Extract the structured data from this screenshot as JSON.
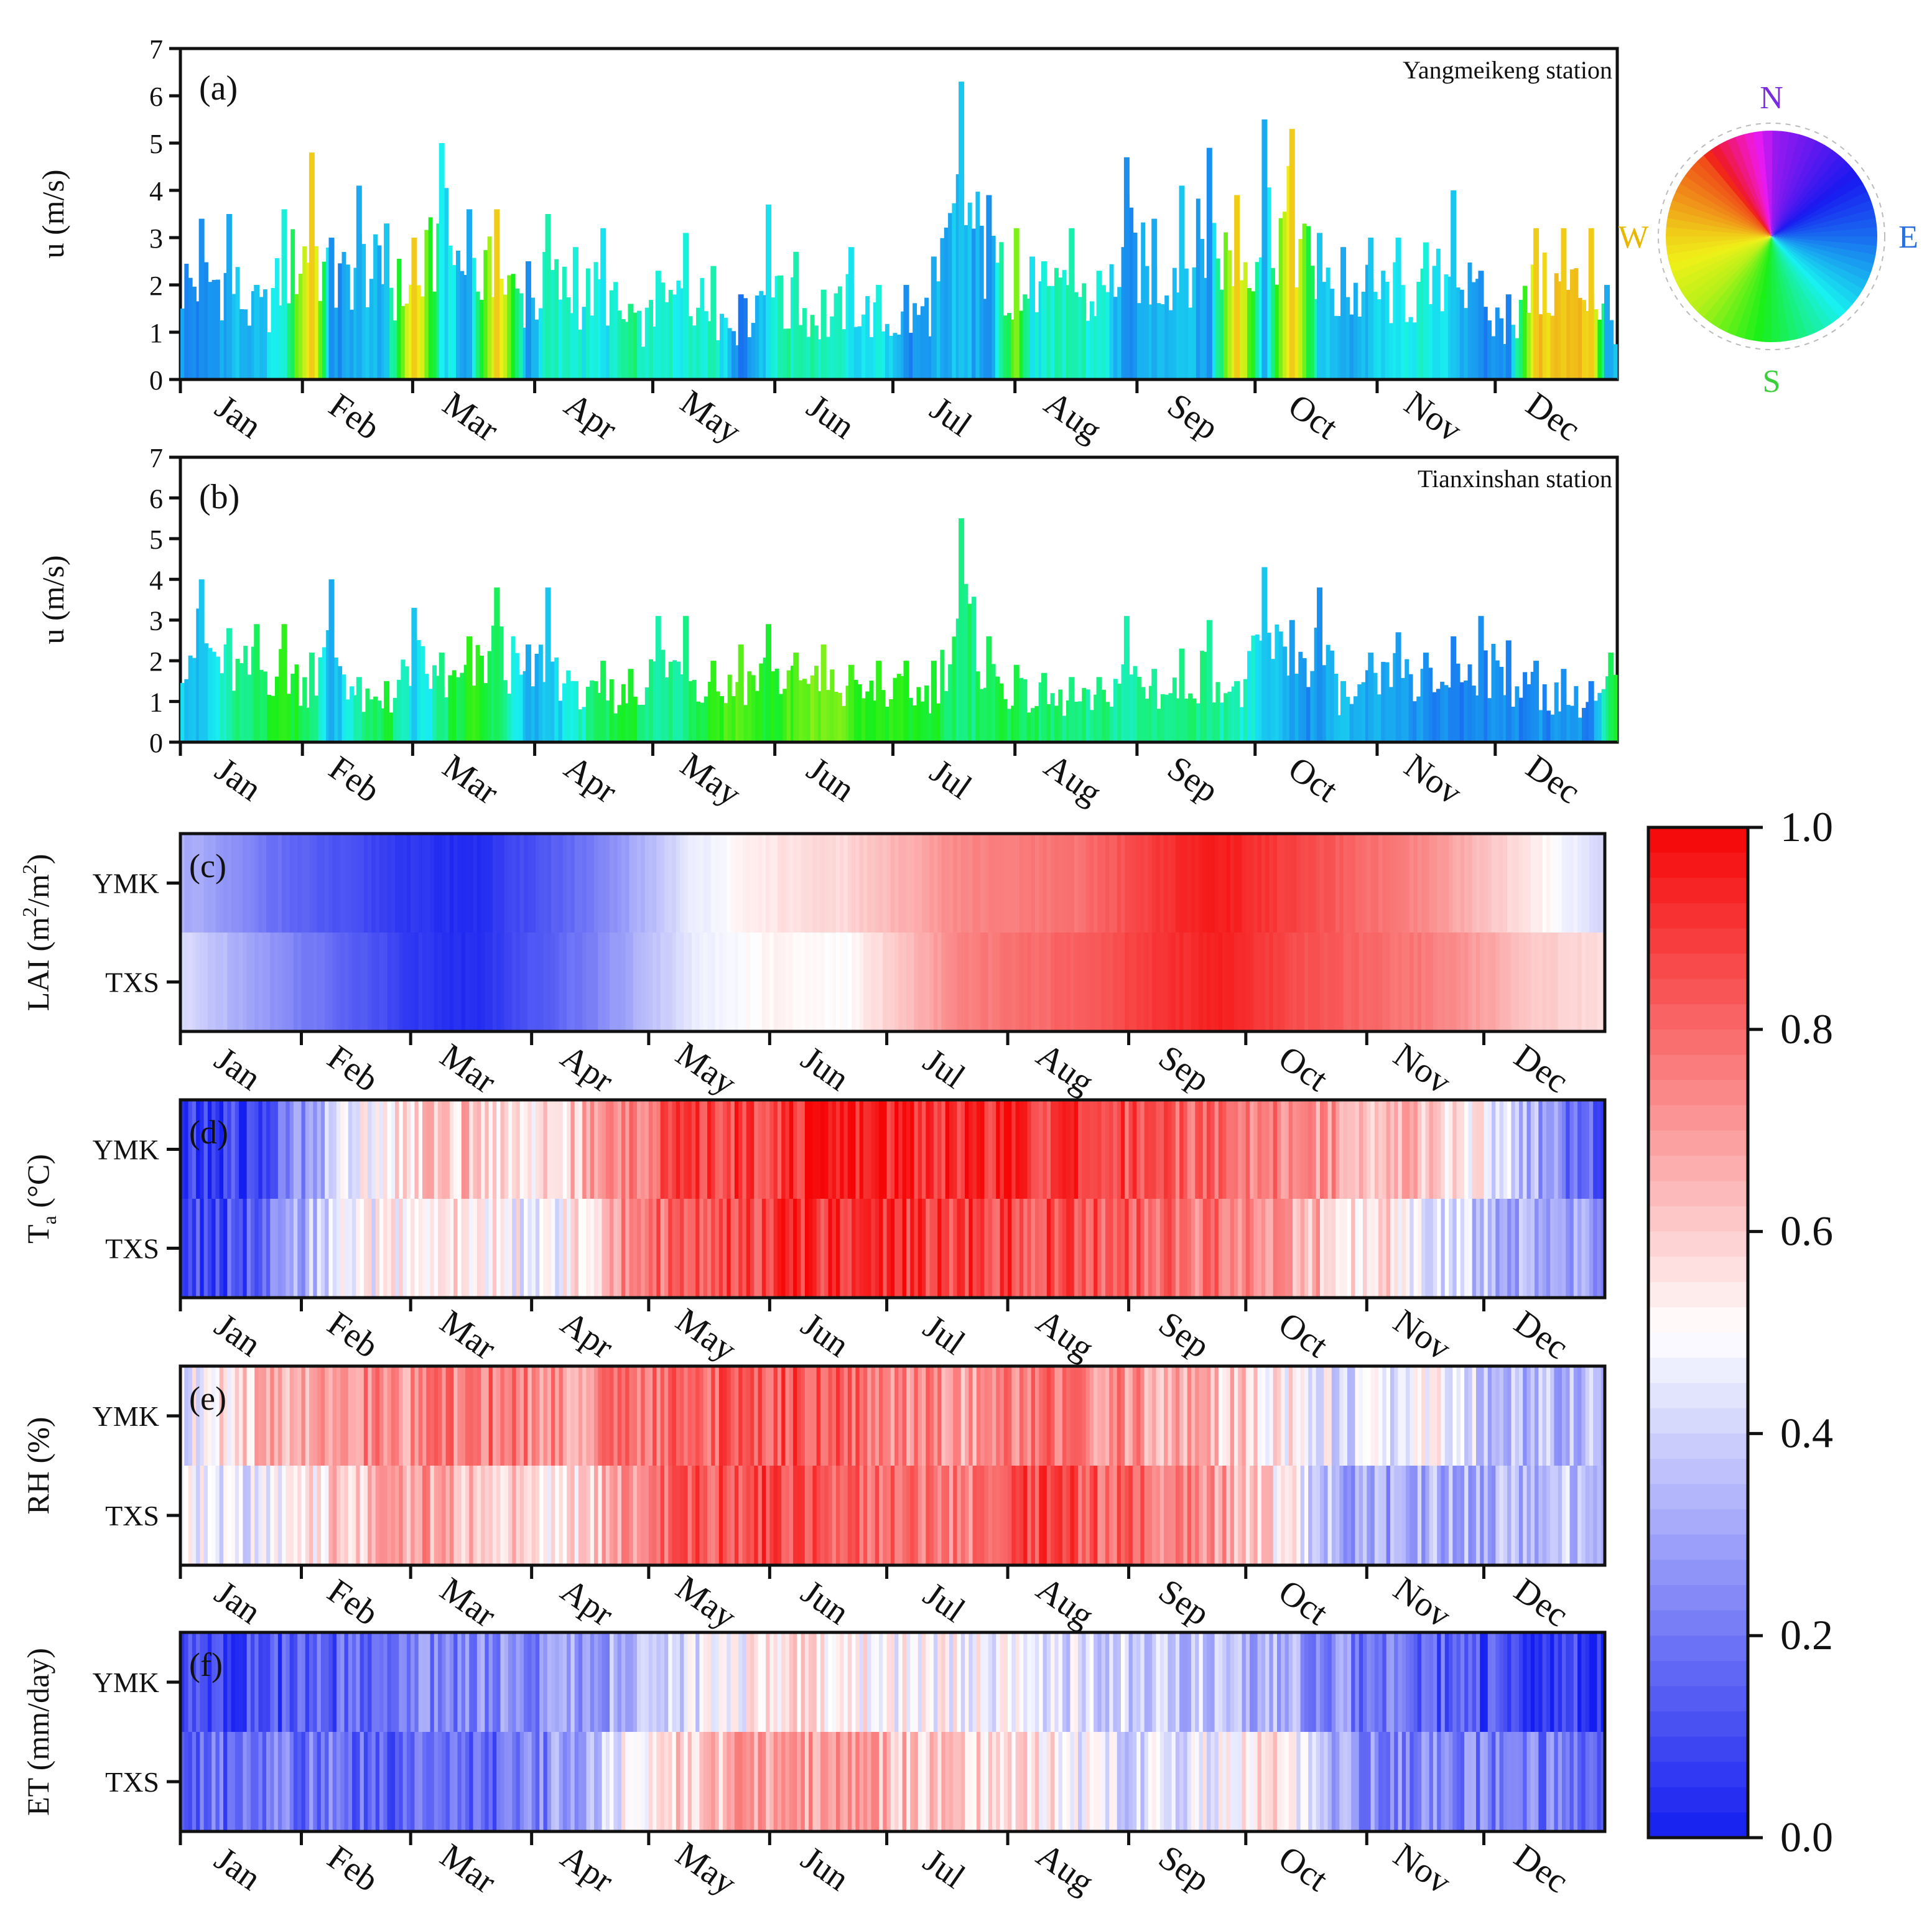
{
  "figure": {
    "months": [
      "Jan",
      "Feb",
      "Mar",
      "Apr",
      "May",
      "Jun",
      "Jul",
      "Aug",
      "Sep",
      "Oct",
      "Nov",
      "Dec"
    ],
    "bar_panels": [
      {
        "tag": "(a)",
        "station": "Yangmeikeng station",
        "ylabel": "u (m/s)",
        "yticks": [
          "0",
          "1",
          "2",
          "3",
          "4",
          "5",
          "6",
          "7"
        ]
      },
      {
        "tag": "(b)",
        "station": "Tianxinshan station",
        "ylabel": "u (m/s)",
        "yticks": [
          "0",
          "1",
          "2",
          "3",
          "4",
          "5",
          "6",
          "7"
        ]
      }
    ],
    "compass": {
      "n": "N",
      "e": "E",
      "s": "S",
      "w": "W"
    },
    "heat_panels": [
      {
        "tag": "(c)",
        "ylabel_main": "LAI (m",
        "sup1": "2",
        "mid": "/m",
        "sup2": "2",
        "tail": ")",
        "row1": "YMK",
        "row2": "TXS"
      },
      {
        "tag": "(d)",
        "ylabel_main": "T",
        "sub": "a",
        "tail": " (°C)",
        "row1": "YMK",
        "row2": "TXS"
      },
      {
        "tag": "(e)",
        "ylabel_main": "RH (%)",
        "row1": "YMK",
        "row2": "TXS"
      },
      {
        "tag": "(f)",
        "ylabel_main": "ET (mm/day)",
        "row1": "YMK",
        "row2": "TXS"
      }
    ],
    "colorbar_ticks": [
      "0.0",
      "0.2",
      "0.4",
      "0.6",
      "0.8",
      "1.0"
    ]
  },
  "chart_data": [
    {
      "type": "bar",
      "title": "Yangmeikeng station",
      "panel": "(a)",
      "ylabel": "u (m/s)",
      "ylim": [
        0,
        7
      ],
      "x_unit": "day of year",
      "color_encoding": "wind direction (compass hue wheel)",
      "days": [
        5,
        12,
        19,
        26,
        33,
        38,
        45,
        52,
        59,
        66,
        73,
        80,
        88,
        93,
        100,
        107,
        114,
        121,
        128,
        135,
        142,
        149,
        152,
        156,
        163,
        170,
        177,
        184,
        191,
        198,
        205,
        212,
        216,
        219,
        226,
        233,
        240,
        247,
        254,
        261,
        268,
        275,
        282,
        289,
        295,
        302,
        309,
        316,
        323,
        330,
        337,
        344,
        351,
        358,
        362
      ],
      "values": [
        3.4,
        3.5,
        2.0,
        3.6,
        4.8,
        3.0,
        4.1,
        3.3,
        3.0,
        5.0,
        3.6,
        3.6,
        2.5,
        3.5,
        2.8,
        3.2,
        1.6,
        2.3,
        3.1,
        2.4,
        1.8,
        3.7,
        2.2,
        2.7,
        1.9,
        2.8,
        2.0,
        2.0,
        2.6,
        6.3,
        3.9,
        3.2,
        2.6,
        2.5,
        3.2,
        2.3,
        4.7,
        3.4,
        4.1,
        4.9,
        3.9,
        5.5,
        5.3,
        3.1,
        2.8,
        3.0,
        3.0,
        2.9,
        4.0,
        2.3,
        1.8,
        3.2,
        3.2,
        3.2,
        2.0
      ],
      "directions_deg": [
        100,
        110,
        120,
        140,
        270,
        100,
        110,
        120,
        270,
        135,
        110,
        270,
        100,
        150,
        140,
        130,
        160,
        140,
        140,
        150,
        90,
        130,
        150,
        150,
        150,
        130,
        140,
        100,
        110,
        120,
        100,
        210,
        130,
        140,
        150,
        140,
        100,
        110,
        120,
        100,
        270,
        110,
        270,
        120,
        110,
        120,
        130,
        140,
        120,
        100,
        95,
        270,
        270,
        270,
        110
      ]
    },
    {
      "type": "bar",
      "title": "Tianxinshan station",
      "panel": "(b)",
      "ylabel": "u (m/s)",
      "ylim": [
        0,
        7
      ],
      "x_unit": "day of year",
      "color_encoding": "wind direction (compass hue wheel)",
      "days": [
        5,
        12,
        19,
        26,
        33,
        38,
        45,
        52,
        59,
        66,
        73,
        80,
        88,
        93,
        100,
        107,
        114,
        121,
        128,
        135,
        142,
        149,
        156,
        163,
        170,
        177,
        184,
        191,
        198,
        205,
        212,
        219,
        226,
        233,
        240,
        247,
        254,
        261,
        268,
        275,
        282,
        289,
        295,
        302,
        309,
        316,
        323,
        330,
        337,
        344,
        351,
        358,
        363
      ],
      "values": [
        4.0,
        2.8,
        2.9,
        2.9,
        2.2,
        4.0,
        1.6,
        1.5,
        3.3,
        2.2,
        2.6,
        3.8,
        2.4,
        3.8,
        1.5,
        2.0,
        1.8,
        3.1,
        3.1,
        2.0,
        2.4,
        2.9,
        2.2,
        2.4,
        1.9,
        2.0,
        2.0,
        2.0,
        5.5,
        2.6,
        1.9,
        1.7,
        1.6,
        1.6,
        3.1,
        1.8,
        2.3,
        3.0,
        1.5,
        4.3,
        3.0,
        3.8,
        1.5,
        2.2,
        2.7,
        2.2,
        2.6,
        3.1,
        2.5,
        2.0,
        1.8,
        1.5,
        2.2
      ],
      "directions_deg": [
        120,
        150,
        170,
        190,
        160,
        110,
        150,
        180,
        120,
        160,
        190,
        170,
        110,
        120,
        140,
        170,
        180,
        150,
        160,
        190,
        200,
        180,
        200,
        210,
        195,
        190,
        185,
        180,
        160,
        170,
        175,
        165,
        160,
        160,
        150,
        155,
        160,
        155,
        150,
        120,
        105,
        100,
        120,
        110,
        105,
        100,
        95,
        100,
        95,
        100,
        100,
        95,
        170
      ]
    },
    {
      "type": "heatmap",
      "panel": "(c)",
      "ylabel": "LAI (m2/m2)",
      "rows": [
        "YMK",
        "TXS"
      ],
      "value_range": [
        0,
        1
      ],
      "x_unit": "day of year",
      "profiles": {
        "YMK": {
          "days": [
            0,
            30,
            60,
            75,
            105,
            130,
            150,
            170,
            200,
            230,
            250,
            265,
            290,
            320,
            345,
            365
          ],
          "values": [
            0.33,
            0.15,
            0.05,
            0.03,
            0.2,
            0.45,
            0.55,
            0.58,
            0.74,
            0.78,
            0.9,
            0.96,
            0.85,
            0.72,
            0.55,
            0.4
          ]
        },
        "TXS": {
          "days": [
            0,
            30,
            60,
            75,
            105,
            130,
            150,
            170,
            200,
            230,
            250,
            265,
            290,
            320,
            345,
            365
          ],
          "values": [
            0.42,
            0.22,
            0.06,
            0.03,
            0.22,
            0.45,
            0.52,
            0.5,
            0.75,
            0.82,
            0.9,
            0.95,
            0.84,
            0.76,
            0.62,
            0.56
          ]
        }
      }
    },
    {
      "type": "heatmap",
      "panel": "(d)",
      "ylabel": "Ta (°C)",
      "rows": [
        "YMK",
        "TXS"
      ],
      "value_range": [
        0,
        1
      ],
      "x_unit": "day of year",
      "profiles": {
        "YMK": {
          "days": [
            0,
            20,
            35,
            50,
            70,
            95,
            110,
            125,
            150,
            170,
            190,
            210,
            230,
            250,
            270,
            290,
            310,
            330,
            345,
            365
          ],
          "values": [
            0.05,
            0.08,
            0.35,
            0.55,
            0.62,
            0.55,
            0.72,
            0.85,
            0.9,
            0.95,
            0.93,
            0.92,
            0.88,
            0.85,
            0.8,
            0.72,
            0.65,
            0.55,
            0.35,
            0.08
          ]
        },
        "TXS": {
          "days": [
            0,
            20,
            35,
            50,
            70,
            95,
            110,
            125,
            150,
            170,
            190,
            210,
            230,
            250,
            270,
            290,
            310,
            330,
            345,
            365
          ],
          "values": [
            0.1,
            0.12,
            0.4,
            0.5,
            0.55,
            0.45,
            0.7,
            0.82,
            0.88,
            0.92,
            0.9,
            0.88,
            0.85,
            0.8,
            0.75,
            0.65,
            0.55,
            0.4,
            0.3,
            0.25
          ]
        }
      }
    },
    {
      "type": "heatmap",
      "panel": "(e)",
      "ylabel": "RH (%)",
      "rows": [
        "YMK",
        "TXS"
      ],
      "value_range": [
        0,
        1
      ],
      "x_unit": "day of year",
      "profiles": {
        "YMK": {
          "days": [
            0,
            20,
            40,
            60,
            80,
            100,
            120,
            140,
            160,
            180,
            200,
            220,
            240,
            260,
            280,
            300,
            320,
            340,
            365
          ],
          "values": [
            0.45,
            0.62,
            0.75,
            0.72,
            0.78,
            0.7,
            0.8,
            0.82,
            0.85,
            0.76,
            0.7,
            0.78,
            0.72,
            0.65,
            0.55,
            0.4,
            0.5,
            0.35,
            0.35
          ]
        },
        "TXS": {
          "days": [
            0,
            20,
            40,
            60,
            80,
            100,
            120,
            140,
            160,
            180,
            200,
            220,
            240,
            260,
            280,
            300,
            320,
            340,
            365
          ],
          "values": [
            0.45,
            0.45,
            0.6,
            0.7,
            0.6,
            0.55,
            0.78,
            0.85,
            0.88,
            0.8,
            0.75,
            0.88,
            0.8,
            0.75,
            0.55,
            0.3,
            0.32,
            0.35,
            0.4
          ]
        }
      }
    },
    {
      "type": "heatmap",
      "panel": "(f)",
      "ylabel": "ET (mm/day)",
      "rows": [
        "YMK",
        "TXS"
      ],
      "value_range": [
        0,
        1
      ],
      "x_unit": "day of year",
      "profiles": {
        "YMK": {
          "days": [
            0,
            30,
            60,
            90,
            120,
            140,
            160,
            180,
            200,
            220,
            240,
            260,
            280,
            300,
            330,
            365
          ],
          "values": [
            0.08,
            0.12,
            0.22,
            0.25,
            0.35,
            0.5,
            0.55,
            0.5,
            0.48,
            0.45,
            0.4,
            0.38,
            0.32,
            0.22,
            0.12,
            0.05
          ]
        },
        "TXS": {
          "days": [
            0,
            30,
            60,
            90,
            120,
            140,
            160,
            180,
            200,
            220,
            240,
            260,
            280,
            300,
            330,
            365
          ],
          "values": [
            0.15,
            0.2,
            0.15,
            0.2,
            0.55,
            0.65,
            0.7,
            0.65,
            0.6,
            0.55,
            0.42,
            0.45,
            0.55,
            0.25,
            0.22,
            0.2
          ]
        }
      }
    }
  ]
}
